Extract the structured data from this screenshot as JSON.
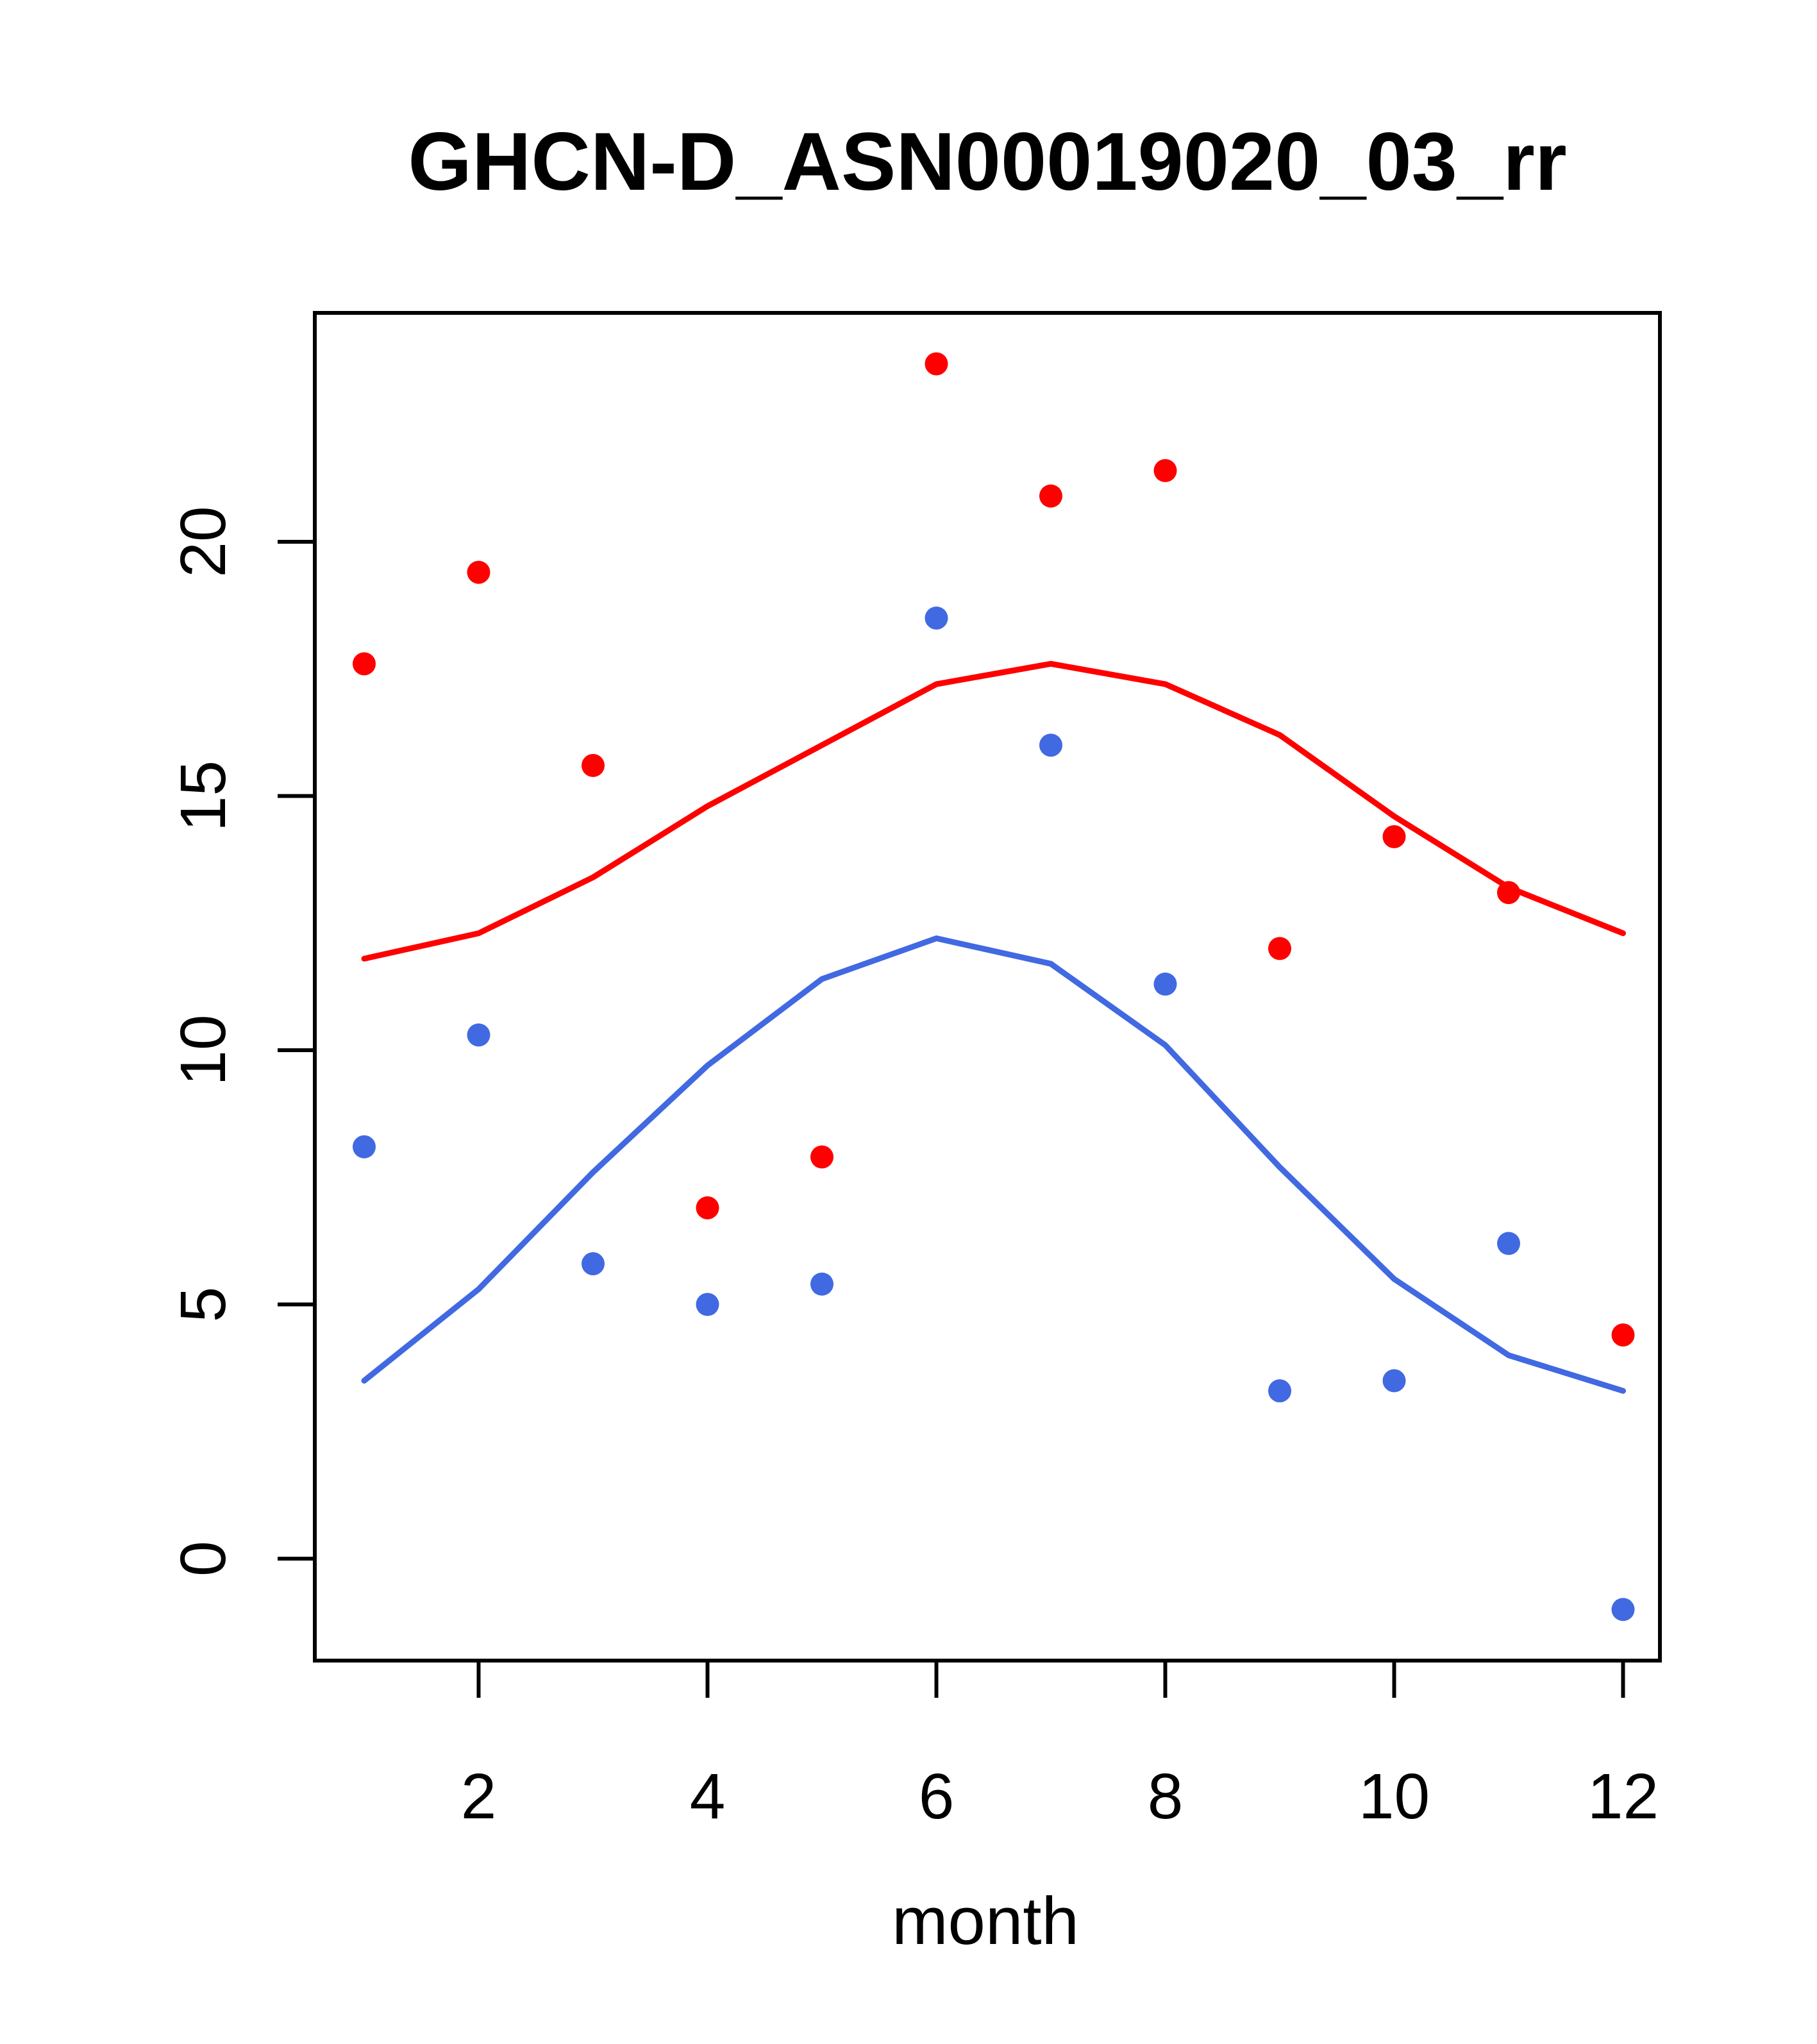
{
  "colors": {
    "red_series": "#ff0000",
    "blue_series": "#4169e1",
    "axis": "#000000",
    "background": "#ffffff"
  },
  "chart_data": {
    "type": "scatter",
    "title": "GHCN-D_ASN00019020_03_rr",
    "xlabel": "month",
    "ylabel": "",
    "x": [
      1,
      2,
      3,
      4,
      5,
      6,
      7,
      8,
      9,
      10,
      11,
      12
    ],
    "x_ticks": [
      2,
      4,
      6,
      8,
      10,
      12
    ],
    "x_tick_labels": [
      "2",
      "4",
      "6",
      "8",
      "10",
      "12"
    ],
    "y_ticks": [
      0,
      5,
      10,
      15,
      20
    ],
    "y_tick_labels": [
      "0",
      "5",
      "10",
      "15",
      "20"
    ],
    "xlim": [
      0.56,
      12.44
    ],
    "ylim": [
      -2.0,
      24.5
    ],
    "grid": false,
    "legend_position": "none",
    "series": [
      {
        "name": "red-smooth-line",
        "type": "line",
        "color": "#ff0000",
        "values": [
          11.8,
          12.3,
          13.4,
          14.8,
          16.0,
          17.2,
          17.6,
          17.2,
          16.2,
          14.6,
          13.2,
          12.3
        ]
      },
      {
        "name": "blue-smooth-line",
        "type": "line",
        "color": "#4169e1",
        "values": [
          3.5,
          5.3,
          7.6,
          9.7,
          11.4,
          12.2,
          11.7,
          10.1,
          7.7,
          5.5,
          4.0,
          3.3
        ]
      },
      {
        "name": "red-points",
        "type": "scatter",
        "color": "#ff0000",
        "values": [
          17.6,
          19.4,
          15.6,
          6.9,
          7.9,
          23.5,
          20.9,
          21.4,
          12.0,
          14.2,
          13.1,
          4.4
        ]
      },
      {
        "name": "blue-points",
        "type": "scatter",
        "color": "#4169e1",
        "values": [
          8.1,
          10.3,
          5.8,
          5.0,
          5.4,
          18.5,
          16.0,
          11.3,
          3.3,
          3.5,
          6.2,
          -1.0
        ]
      }
    ]
  }
}
